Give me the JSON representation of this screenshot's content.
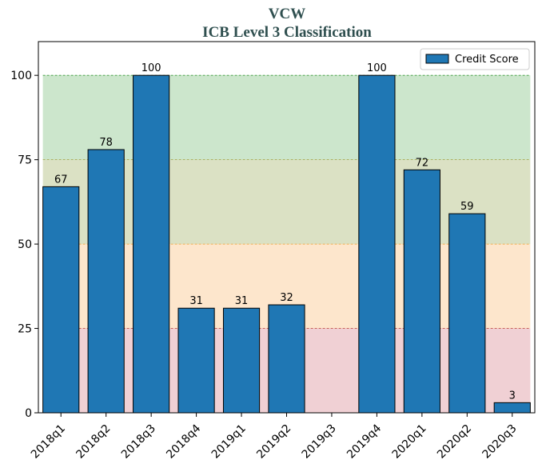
{
  "chart_data": {
    "type": "bar",
    "title": "VCW",
    "subtitle": "ICB Level 3 Classification",
    "xlabel": "",
    "ylabel": "",
    "categories": [
      "2018q1",
      "2018q2",
      "2018q3",
      "2018q4",
      "2019q1",
      "2019q2",
      "2019q3",
      "2019q4",
      "2020q1",
      "2020q2",
      "2020q3"
    ],
    "series": [
      {
        "name": "Credit Score",
        "color": "#1f77b4",
        "values": [
          67,
          78,
          100,
          31,
          31,
          32,
          null,
          100,
          72,
          59,
          3
        ],
        "labels": [
          "67",
          "78",
          "100",
          "31",
          "31",
          "32",
          "",
          "100",
          "72",
          "59",
          "3"
        ]
      }
    ],
    "ylim": [
      0,
      110
    ],
    "yticks": [
      0,
      25,
      50,
      75,
      100
    ],
    "ytick_labels": [
      "0",
      "25",
      "50",
      "75",
      "100"
    ],
    "bands": [
      {
        "from": 0,
        "to": 25,
        "color": "#f0d0d4"
      },
      {
        "from": 25,
        "to": 50,
        "color": "#fde6cc"
      },
      {
        "from": 50,
        "to": 75,
        "color": "#dbe1c4"
      },
      {
        "from": 75,
        "to": 100,
        "color": "#cce6cc"
      }
    ],
    "threshold_lines": [
      {
        "y": 25,
        "color": "#c0504d"
      },
      {
        "y": 50,
        "color": "#f0a030"
      },
      {
        "y": 75,
        "color": "#a0a040"
      },
      {
        "y": 100,
        "color": "#3a9a3a"
      }
    ],
    "legend": {
      "position": "top-right"
    },
    "grid": false
  }
}
